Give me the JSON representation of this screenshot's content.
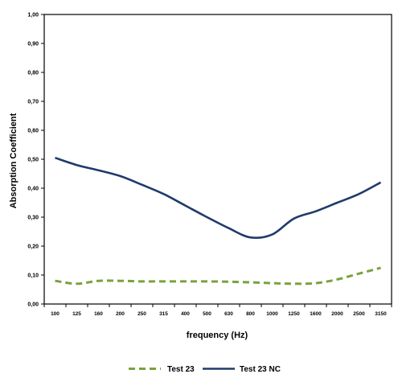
{
  "chart_data": {
    "type": "line",
    "xlabel": "frequency (Hz)",
    "ylabel": "Absorption Coefficient",
    "categories": [
      "100",
      "125",
      "160",
      "200",
      "250",
      "315",
      "400",
      "500",
      "630",
      "800",
      "1000",
      "1250",
      "1600",
      "2000",
      "2500",
      "3150"
    ],
    "y_ticks": [
      "0,00",
      "0,10",
      "0,20",
      "0,30",
      "0,40",
      "0,50",
      "0,60",
      "0,70",
      "0,80",
      "0,90",
      "1,00"
    ],
    "ylim": [
      0,
      1
    ],
    "grid": false,
    "legend_position": "bottom",
    "series": [
      {
        "name": "Test 23",
        "style": "dashed",
        "color": "#7aa23c",
        "values": [
          0.08,
          0.07,
          0.08,
          0.08,
          0.078,
          0.078,
          0.078,
          0.078,
          0.077,
          0.075,
          0.072,
          0.07,
          0.072,
          0.085,
          0.105,
          0.125
        ]
      },
      {
        "name": "Test 23 NC",
        "style": "solid",
        "color": "#1f3b6b",
        "values": [
          0.505,
          0.48,
          0.462,
          0.442,
          0.412,
          0.38,
          0.34,
          0.3,
          0.262,
          0.23,
          0.24,
          0.295,
          0.32,
          0.35,
          0.38,
          0.42
        ]
      }
    ]
  }
}
